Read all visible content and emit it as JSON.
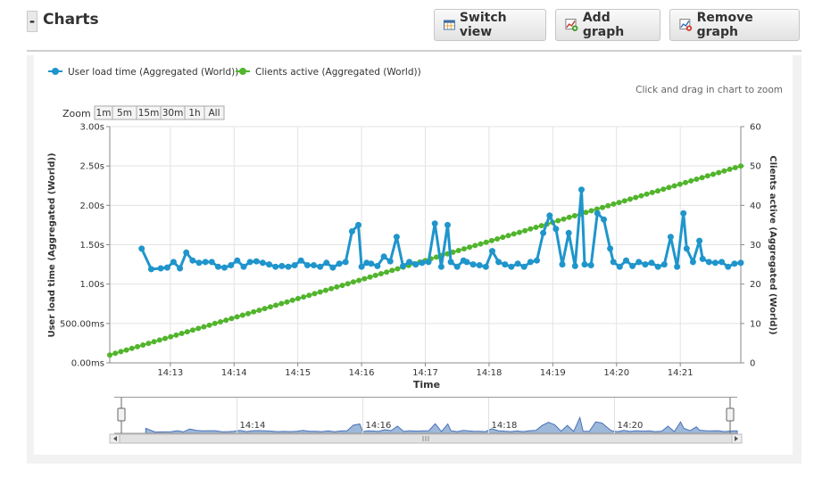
{
  "panel": {
    "collapse_label": "-",
    "title": "Charts"
  },
  "toolbar": {
    "switch_view_label": "Switch view",
    "add_graph_label": "Add graph",
    "remove_graph_label": "Remove graph"
  },
  "chart_data": {
    "type": "line",
    "hint": "Click and drag in chart to zoom",
    "zoom": {
      "label": "Zoom",
      "options": [
        "1m",
        "5m",
        "15m",
        "30m",
        "1h",
        "All"
      ]
    },
    "xlabel": "Time",
    "ylabel": "User load time (Aggregated (World))",
    "y2label": "Clients active (Aggregated (World))",
    "ylim": [
      0,
      3
    ],
    "y2lim": [
      0,
      60
    ],
    "y_ticks": [
      "0.00ms",
      "500.00ms",
      "1.00s",
      "1.50s",
      "2.00s",
      "2.50s",
      "3.00s"
    ],
    "y2_ticks": [
      "0",
      "10",
      "20",
      "30",
      "40",
      "50",
      "60"
    ],
    "x_ticks": [
      "14:13",
      "14:14",
      "14:15",
      "14:16",
      "14:17",
      "14:18",
      "14:19",
      "14:20",
      "14:21"
    ],
    "x_tick_minutes": [
      13,
      14,
      15,
      16,
      17,
      18,
      19,
      20,
      21
    ],
    "xlim_minutes": [
      12.05,
      21.95
    ],
    "navigator_ticks": [
      "14:14",
      "14:16",
      "14:18",
      "14:20"
    ],
    "series": [
      {
        "name": "User load time (Aggregated (World))",
        "color": "#1f95cc",
        "axis": "left",
        "x_minutes": [
          12.55,
          12.7,
          12.85,
          12.95,
          13.05,
          13.15,
          13.25,
          13.35,
          13.45,
          13.55,
          13.65,
          13.75,
          13.85,
          13.95,
          14.05,
          14.15,
          14.25,
          14.35,
          14.45,
          14.55,
          14.65,
          14.75,
          14.85,
          14.95,
          15.05,
          15.15,
          15.25,
          15.35,
          15.45,
          15.55,
          15.65,
          15.75,
          15.85,
          15.95,
          16.0,
          16.08,
          16.15,
          16.25,
          16.35,
          16.45,
          16.55,
          16.65,
          16.75,
          16.85,
          16.95,
          17.05,
          17.15,
          17.25,
          17.35,
          17.4,
          17.5,
          17.6,
          17.65,
          17.75,
          17.85,
          17.95,
          18.05,
          18.15,
          18.25,
          18.35,
          18.45,
          18.55,
          18.65,
          18.75,
          18.85,
          18.95,
          19.05,
          19.15,
          19.25,
          19.35,
          19.45,
          19.5,
          19.6,
          19.7,
          19.8,
          19.9,
          19.95,
          20.05,
          20.15,
          20.25,
          20.35,
          20.45,
          20.55,
          20.65,
          20.75,
          20.85,
          20.95,
          21.05,
          21.1,
          21.2,
          21.3,
          21.35,
          21.45,
          21.55,
          21.65,
          21.75,
          21.85,
          21.95
        ],
        "values": [
          1.45,
          1.19,
          1.2,
          1.21,
          1.28,
          1.2,
          1.4,
          1.3,
          1.27,
          1.28,
          1.28,
          1.22,
          1.21,
          1.24,
          1.3,
          1.22,
          1.28,
          1.29,
          1.27,
          1.25,
          1.22,
          1.23,
          1.22,
          1.24,
          1.3,
          1.24,
          1.24,
          1.22,
          1.27,
          1.21,
          1.26,
          1.28,
          1.67,
          1.75,
          1.22,
          1.27,
          1.26,
          1.23,
          1.35,
          1.29,
          1.6,
          1.23,
          1.28,
          1.25,
          1.27,
          1.28,
          1.77,
          1.22,
          1.75,
          1.28,
          1.22,
          1.3,
          1.28,
          1.25,
          1.24,
          1.22,
          1.42,
          1.28,
          1.25,
          1.22,
          1.26,
          1.22,
          1.28,
          1.3,
          1.65,
          1.87,
          1.7,
          1.25,
          1.65,
          1.23,
          2.2,
          1.25,
          1.24,
          1.9,
          1.82,
          1.45,
          1.28,
          1.22,
          1.3,
          1.23,
          1.28,
          1.25,
          1.27,
          1.22,
          1.25,
          1.6,
          1.22,
          1.9,
          1.45,
          1.28,
          1.55,
          1.32,
          1.28,
          1.27,
          1.28,
          1.22,
          1.26,
          1.27
        ]
      },
      {
        "name": "Clients active (Aggregated (World))",
        "color": "#51b52c",
        "axis": "right",
        "x_start_minutes": 12.05,
        "x_end_minutes": 21.95,
        "y_start": 2,
        "y_end": 50
      }
    ]
  }
}
